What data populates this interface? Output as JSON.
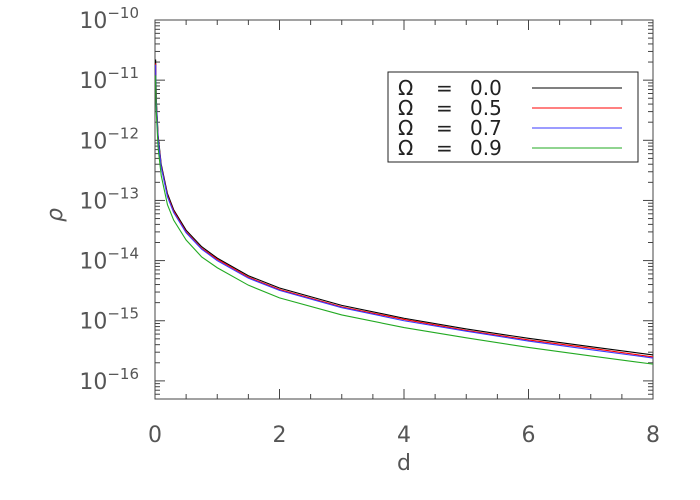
{
  "chart_data": {
    "type": "line",
    "xlabel": "d",
    "ylabel": "ρ",
    "xlim": [
      0,
      8
    ],
    "ylim": [
      5e-17,
      1e-10
    ],
    "yscale": "log",
    "x_ticks": [
      "0",
      "2",
      "4",
      "6",
      "8"
    ],
    "y_ticks": [
      {
        "base": "10",
        "exp": "−10",
        "value": 1e-10
      },
      {
        "base": "10",
        "exp": "−11",
        "value": 1e-11
      },
      {
        "base": "10",
        "exp": "−12",
        "value": 1e-12
      },
      {
        "base": "10",
        "exp": "−13",
        "value": 1e-13
      },
      {
        "base": "10",
        "exp": "−14",
        "value": 1e-14
      },
      {
        "base": "10",
        "exp": "−15",
        "value": 1e-15
      },
      {
        "base": "10",
        "exp": "−16",
        "value": 1e-16
      }
    ],
    "legend_position": "top-right",
    "x": [
      0.01,
      0.02,
      0.05,
      0.1,
      0.2,
      0.3,
      0.5,
      0.75,
      1,
      1.5,
      2,
      3,
      4,
      5,
      6,
      7,
      8
    ],
    "series": [
      {
        "name": "Ω = 0.0",
        "label": {
          "symbol": "Ω",
          "eq": "=",
          "value": "0.0"
        },
        "color": "#000000",
        "values": [
          2.2e-11,
          5e-12,
          1.2e-12,
          4e-13,
          1.3e-13,
          7e-14,
          3.2e-14,
          1.7e-14,
          1.1e-14,
          5.6e-15,
          3.5e-15,
          1.8e-15,
          1.1e-15,
          7.3e-16,
          5.1e-16,
          3.7e-16,
          2.7e-16
        ]
      },
      {
        "name": "Ω = 0.5",
        "label": {
          "symbol": "Ω",
          "eq": "=",
          "value": "0.5"
        },
        "color": "#ff0000",
        "values": [
          1.9e-11,
          4.5e-12,
          1.1e-12,
          3.7e-13,
          1.2e-13,
          6.6e-14,
          3e-14,
          1.6e-14,
          1.05e-14,
          5.3e-15,
          3.3e-15,
          1.7e-15,
          1.05e-15,
          6.9e-16,
          4.8e-16,
          3.5e-16,
          2.5e-16
        ]
      },
      {
        "name": "Ω = 0.7",
        "label": {
          "symbol": "Ω",
          "eq": "=",
          "value": "0.7"
        },
        "color": "#3a3aff",
        "values": [
          1.8e-11,
          4.3e-12,
          1.05e-12,
          3.6e-13,
          1.15e-13,
          6.3e-14,
          2.9e-14,
          1.55e-14,
          1e-14,
          5.1e-15,
          3.2e-15,
          1.65e-15,
          1e-15,
          6.7e-16,
          4.6e-16,
          3.3e-16,
          2.4e-16
        ]
      },
      {
        "name": "Ω = 0.9",
        "label": {
          "symbol": "Ω",
          "eq": "=",
          "value": "0.9"
        },
        "color": "#22aa22",
        "values": [
          1.2e-11,
          3e-12,
          7.5e-13,
          2.6e-13,
          8.5e-14,
          4.7e-14,
          2.2e-14,
          1.15e-14,
          7.6e-15,
          3.9e-15,
          2.4e-15,
          1.25e-15,
          7.7e-16,
          5.2e-16,
          3.6e-16,
          2.6e-16,
          1.9e-16
        ]
      }
    ]
  }
}
